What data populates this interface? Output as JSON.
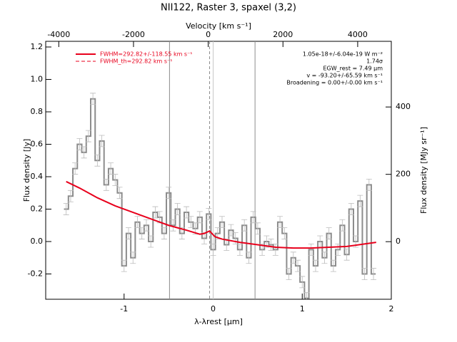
{
  "chart_data": {
    "type": "line",
    "title": "NII122, Raster 3, spaxel (3,2)",
    "xlabel": "λ-λrest [μm]",
    "x2label": "Velocity [km s⁻¹]",
    "ylabel": "Flux density [Jy]",
    "y2label": "Flux density [MJy sr⁻¹]",
    "xlim": [
      -1.88,
      2.0
    ],
    "xticks": [
      -1,
      0,
      1,
      2
    ],
    "x2lim": [
      -4350,
      4900
    ],
    "x2ticks": [
      -4000,
      -2000,
      0,
      2000,
      4000
    ],
    "ylim": [
      -0.356,
      1.235
    ],
    "yticks": [
      -0.2,
      {
        "value": 0,
        "label": "0.0"
      },
      0.2,
      0.4,
      0.6,
      0.8,
      {
        "value": 1,
        "label": "1.0"
      },
      1.2
    ],
    "y2lim": [
      -171,
      595
    ],
    "y2ticks": [
      0,
      200,
      400
    ],
    "spectrum": {
      "color": "#8c8c8c",
      "error": 0.035,
      "x": [
        -1.65,
        -1.6,
        -1.55,
        -1.5,
        -1.45,
        -1.4,
        -1.35,
        -1.3,
        -1.25,
        -1.2,
        -1.15,
        -1.1,
        -1.05,
        -1.0,
        -0.95,
        -0.9,
        -0.85,
        -0.8,
        -0.75,
        -0.7,
        -0.65,
        -0.6,
        -0.55,
        -0.5,
        -0.45,
        -0.4,
        -0.35,
        -0.3,
        -0.25,
        -0.2,
        -0.15,
        -0.1,
        -0.05,
        0.0,
        0.05,
        0.1,
        0.15,
        0.2,
        0.25,
        0.3,
        0.35,
        0.4,
        0.45,
        0.5,
        0.55,
        0.6,
        0.65,
        0.7,
        0.75,
        0.8,
        0.85,
        0.9,
        0.95,
        1.0,
        1.05,
        1.1,
        1.15,
        1.2,
        1.25,
        1.3,
        1.35,
        1.4,
        1.45,
        1.5,
        1.55,
        1.6,
        1.65,
        1.7,
        1.75,
        1.8
      ],
      "values": [
        0.2,
        0.28,
        0.45,
        0.6,
        0.55,
        0.65,
        0.88,
        0.5,
        0.62,
        0.35,
        0.45,
        0.38,
        0.3,
        -0.15,
        0.05,
        -0.1,
        0.12,
        0.05,
        0.1,
        0.0,
        0.18,
        0.15,
        0.05,
        0.3,
        0.1,
        0.2,
        0.05,
        0.18,
        0.12,
        0.08,
        0.15,
        0.02,
        0.17,
        -0.05,
        0.05,
        0.12,
        -0.02,
        0.07,
        0.02,
        -0.05,
        0.1,
        -0.1,
        0.15,
        0.08,
        -0.05,
        0.0,
        -0.02,
        -0.05,
        0.12,
        0.05,
        -0.2,
        -0.1,
        -0.15,
        -0.25,
        -0.35,
        -0.05,
        -0.15,
        0.0,
        -0.1,
        0.05,
        -0.15,
        -0.05,
        0.1,
        -0.08,
        0.2,
        0.0,
        0.25,
        -0.2,
        0.35,
        -0.2
      ]
    },
    "fit": {
      "color": "#e8001c",
      "x": [
        -1.65,
        -1.5,
        -1.3,
        -1.1,
        -0.9,
        -0.7,
        -0.5,
        -0.3,
        -0.15,
        -0.1,
        -0.04,
        0.02,
        0.1,
        0.3,
        0.5,
        0.7,
        0.9,
        1.1,
        1.3,
        1.5,
        1.7,
        1.83
      ],
      "values": [
        0.37,
        0.33,
        0.27,
        0.22,
        0.18,
        0.14,
        0.1,
        0.07,
        0.045,
        0.05,
        0.065,
        0.03,
        0.015,
        -0.005,
        -0.02,
        -0.035,
        -0.04,
        -0.04,
        -0.035,
        -0.03,
        -0.015,
        -0.005
      ]
    },
    "vlines": [
      {
        "x": -0.49,
        "color": "#8c8c8c",
        "dashed": false
      },
      {
        "x": -0.04,
        "color": "#8c8c8c",
        "dashed": true
      },
      {
        "x": 0,
        "color": "#c8c8c8",
        "dashed": false
      },
      {
        "x": 0.47,
        "color": "#8c8c8c",
        "dashed": false
      }
    ],
    "legend": [
      {
        "label": "FWHM=292.82+/-118.55 km s⁻¹",
        "color": "#e8001c",
        "dashed": false
      },
      {
        "label": "FWHM_th=292.82 km s⁻¹",
        "color": "#e8001c",
        "dashed": true
      }
    ],
    "annotations": [
      "1.05e-18+/-6.04e-19 W m⁻²",
      "1.74σ",
      "EGW_rest = 7.49 μm",
      "v = -93.20+/-65.59 km s⁻¹",
      "Broadening = 0.00+/-0.00 km s⁻¹"
    ]
  }
}
